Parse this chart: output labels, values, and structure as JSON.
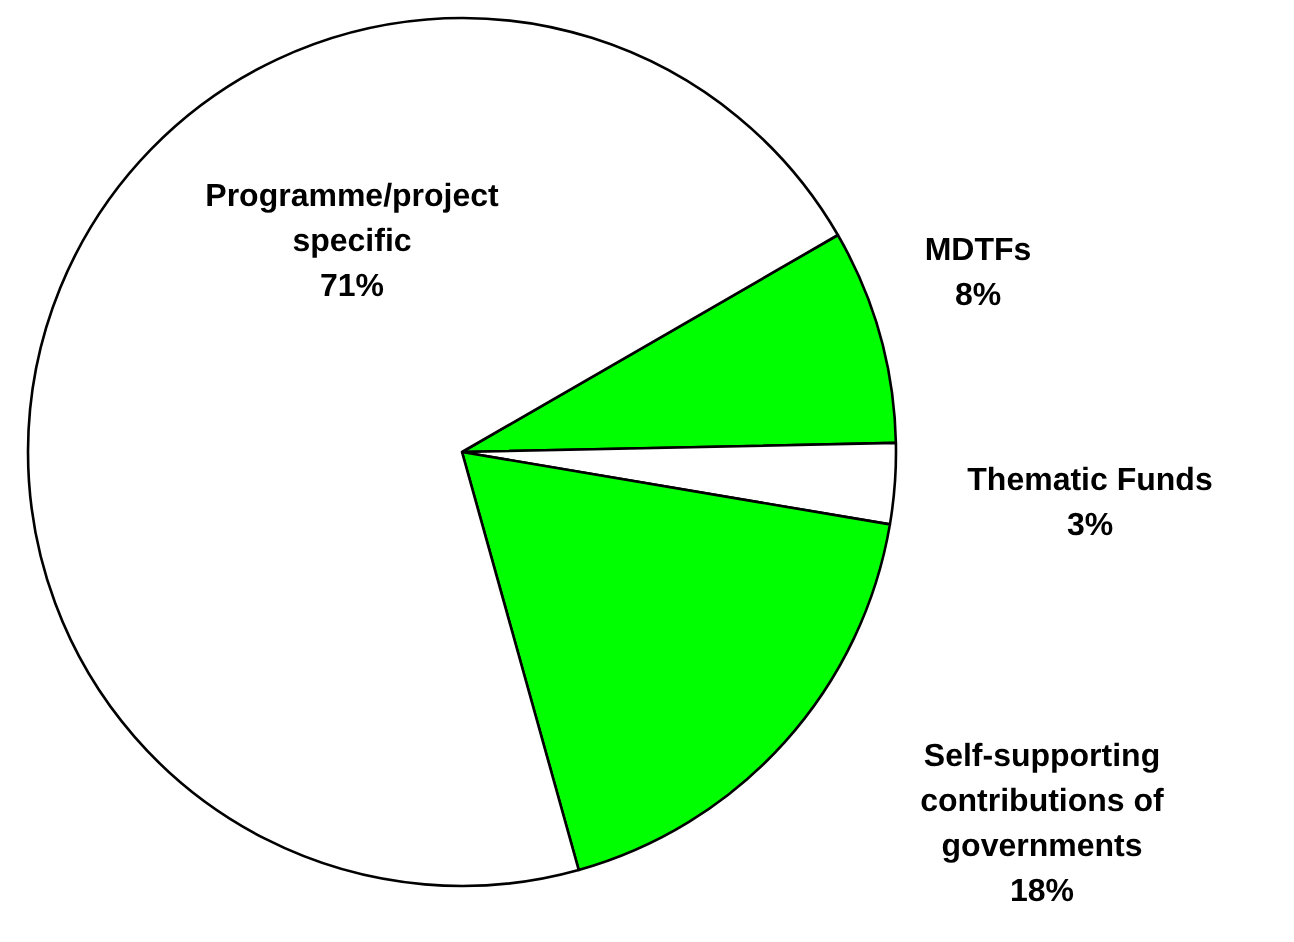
{
  "chart_data": {
    "type": "pie",
    "categories": [
      "MDTFs",
      "Thematic Funds",
      "Self-supporting contributions of governments",
      "Programme/project specific"
    ],
    "values": [
      8,
      3,
      18,
      71
    ],
    "value_labels": [
      "8%",
      "3%",
      "18%",
      "71%"
    ],
    "colors": [
      "#00ff00",
      "#ffffff",
      "#00ff00",
      "#ffffff"
    ]
  }
}
